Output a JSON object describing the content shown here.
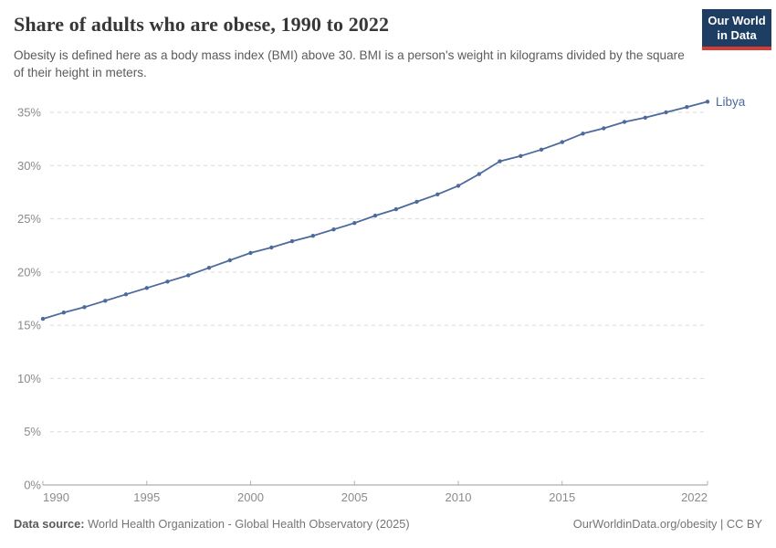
{
  "header": {
    "title": "Share of adults who are obese, 1990 to 2022",
    "subtitle": "Obesity is defined here as a body mass index (BMI) above 30. BMI is a person's weight in kilograms divided by the square of their height in meters."
  },
  "logo": {
    "line1": "Our World",
    "line2": "in Data",
    "bg_color": "#1d3d63",
    "accent_color": "#d73c34"
  },
  "chart_data": {
    "type": "line",
    "title": "Share of adults who are obese, 1990 to 2022",
    "xlabel": "",
    "ylabel": "",
    "x": [
      1990,
      1991,
      1992,
      1993,
      1994,
      1995,
      1996,
      1997,
      1998,
      1999,
      2000,
      2001,
      2002,
      2003,
      2004,
      2005,
      2006,
      2007,
      2008,
      2009,
      2010,
      2011,
      2012,
      2013,
      2014,
      2015,
      2016,
      2017,
      2018,
      2019,
      2020,
      2021,
      2022
    ],
    "series": [
      {
        "name": "Libya",
        "color": "#4c6a9c",
        "values": [
          15.6,
          16.2,
          16.7,
          17.3,
          17.9,
          18.5,
          19.1,
          19.7,
          20.4,
          21.1,
          21.8,
          22.3,
          22.9,
          23.4,
          24.0,
          24.6,
          25.3,
          25.9,
          26.6,
          27.3,
          28.1,
          29.2,
          30.4,
          30.9,
          31.5,
          32.2,
          33.0,
          33.5,
          34.1,
          34.5,
          35.0,
          35.5,
          36.0
        ]
      }
    ],
    "xlim": [
      1990,
      2022
    ],
    "ylim": [
      0,
      35
    ],
    "xticks": [
      1990,
      1995,
      2000,
      2005,
      2010,
      2015,
      2022
    ],
    "yticks": [
      0,
      5,
      10,
      15,
      20,
      25,
      30,
      35
    ],
    "ytick_suffix": "%",
    "grid": "horizontal-dashed",
    "legend": "end-of-line-label",
    "marker": "point-per-year"
  },
  "footer": {
    "datasource_label": "Data source:",
    "datasource_text": " World Health Organization - Global Health Observatory (2025)",
    "credit": "OurWorldinData.org/obesity | CC BY"
  }
}
